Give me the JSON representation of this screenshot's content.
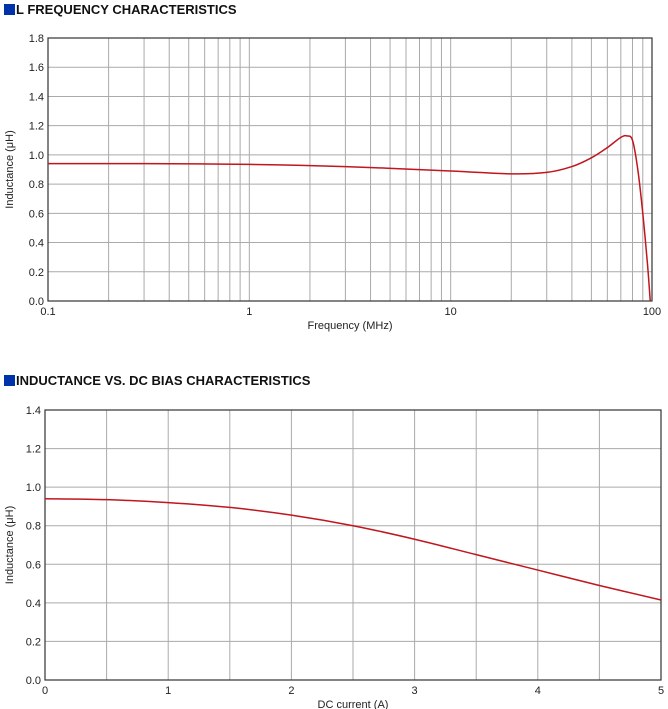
{
  "chart_data": [
    {
      "type": "line",
      "title": "L FREQUENCY CHARACTERISTICS",
      "xlabel": "Frequency (MHz)",
      "ylabel": "Inductance (μH)",
      "xscale": "log",
      "xlim": [
        0.1,
        100
      ],
      "ylim": [
        0,
        1.8
      ],
      "grid": true,
      "xticks": [
        "0.1",
        "1",
        "10",
        "100"
      ],
      "yticks": [
        "0.0",
        "0.2",
        "0.4",
        "0.6",
        "0.8",
        "1.0",
        "1.2",
        "1.4",
        "1.6",
        "1.8"
      ],
      "line_color": "#c0161e",
      "x": [
        0.1,
        0.3,
        1,
        3,
        10,
        20,
        30,
        40,
        50,
        60,
        70,
        75,
        80,
        85,
        90,
        95,
        98
      ],
      "y": [
        0.94,
        0.94,
        0.935,
        0.92,
        0.89,
        0.87,
        0.88,
        0.92,
        0.98,
        1.05,
        1.12,
        1.13,
        1.1,
        0.9,
        0.6,
        0.25,
        0.0
      ]
    },
    {
      "type": "line",
      "title": "INDUCTANCE VS. DC BIAS CHARACTERISTICS",
      "xlabel": "DC current (A)",
      "ylabel": "Inductance (μH)",
      "xlim": [
        0,
        5
      ],
      "ylim": [
        0,
        1.4
      ],
      "grid": true,
      "xticks": [
        "0",
        "1",
        "2",
        "3",
        "4",
        "5"
      ],
      "yticks": [
        "0.0",
        "0.2",
        "0.4",
        "0.6",
        "0.8",
        "1.0",
        "1.2",
        "1.4"
      ],
      "line_color": "#c0161e",
      "x": [
        0,
        0.5,
        1,
        1.5,
        2,
        2.5,
        3,
        3.5,
        4,
        4.5,
        5
      ],
      "y": [
        0.94,
        0.935,
        0.92,
        0.895,
        0.855,
        0.8,
        0.73,
        0.65,
        0.57,
        0.49,
        0.415
      ]
    }
  ]
}
